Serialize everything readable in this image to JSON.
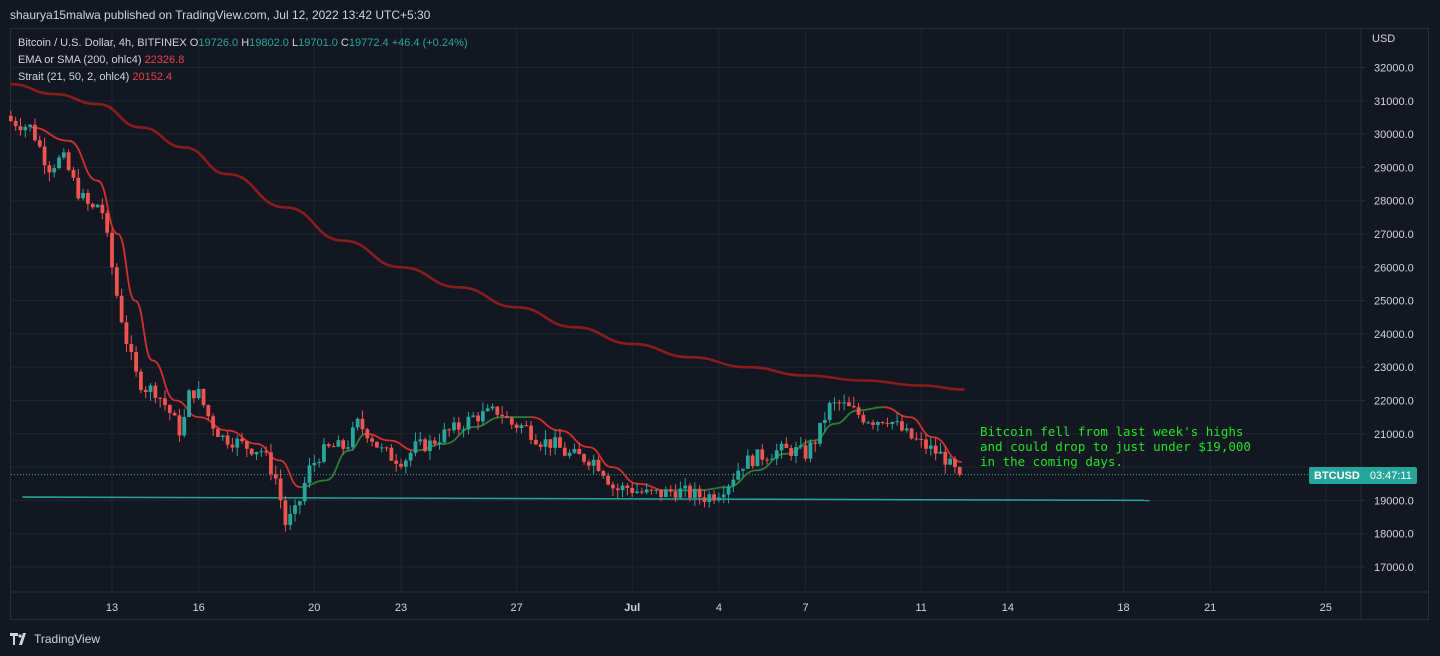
{
  "header": {
    "published": "shaurya15malwa published on TradingView.com, Jul 12, 2022 13:42 UTC+5:30"
  },
  "legend": {
    "symbol": "Bitcoin / U.S. Dollar, 4h, BITFINEX",
    "o_label": "O",
    "o": "19726.0",
    "h_label": "H",
    "h": "19802.0",
    "l_label": "L",
    "l": "19701.0",
    "c_label": "C",
    "c": "19772.4",
    "change": "+46.4 (+0.24%)",
    "ema_label": "EMA or SMA (200, ohlc4)",
    "ema_value": "22326.8",
    "strait_label": "Strait (21, 50, 2, ohlc4)",
    "strait_value": "20152.4"
  },
  "annotation": {
    "line1": "Bitcoin fell from last week's highs",
    "line2": "and could drop to just under $19,000",
    "line3": "in the coming days."
  },
  "price_badge": {
    "symbol": "BTCUSD",
    "countdown": "03:47:11"
  },
  "footer": {
    "brand": "TradingView"
  },
  "colors": {
    "background": "#131722",
    "up": "#26a69a",
    "down": "#ef5350",
    "ma200": "#8b1c1c",
    "strait_down": "#d32f2f",
    "strait_up": "#2e7d32",
    "support": "#26a69a",
    "annotation": "#22e322"
  },
  "chart_data": {
    "type": "candlestick",
    "currency": "USD",
    "ylim": [
      16000,
      33000
    ],
    "yticks": [
      17000,
      18000,
      19000,
      20000,
      21000,
      22000,
      23000,
      24000,
      25000,
      26000,
      27000,
      28000,
      29000,
      30000,
      31000,
      32000
    ],
    "ytick_labels": [
      "17000.0",
      "18000.0",
      "19000.0",
      "",
      "21000.0",
      "22000.0",
      "23000.0",
      "24000.0",
      "25000.0",
      "26000.0",
      "27000.0",
      "28000.0",
      "29000.0",
      "30000.0",
      "31000.0",
      "32000.0"
    ],
    "x_day_ticks": [
      {
        "day": 13,
        "label": "13"
      },
      {
        "day": 16,
        "label": "16"
      },
      {
        "day": 20,
        "label": "20"
      },
      {
        "day": 23,
        "label": "23"
      },
      {
        "day": 27,
        "label": "27"
      },
      {
        "day": 31,
        "label": "Jul"
      },
      {
        "day": 34,
        "label": "4"
      },
      {
        "day": 37,
        "label": "7"
      },
      {
        "day": 41,
        "label": "11"
      },
      {
        "day": 44,
        "label": "14"
      },
      {
        "day": 48,
        "label": "18"
      },
      {
        "day": 51,
        "label": "21"
      },
      {
        "day": 55,
        "label": "25"
      }
    ],
    "x_range_days": [
      9.5,
      56.5
    ],
    "candles_anchor_close": [
      [
        9.5,
        30400
      ],
      [
        10.2,
        30200
      ],
      [
        10.8,
        29000
      ],
      [
        11.3,
        29300
      ],
      [
        11.8,
        28300
      ],
      [
        12.3,
        27700
      ],
      [
        12.6,
        28000
      ],
      [
        12.9,
        26500
      ],
      [
        13.2,
        25000
      ],
      [
        13.5,
        23800
      ],
      [
        13.8,
        22800
      ],
      [
        14.1,
        22400
      ],
      [
        14.5,
        22300
      ],
      [
        14.9,
        21800
      ],
      [
        15.4,
        21000
      ],
      [
        15.7,
        22300
      ],
      [
        16.0,
        22200
      ],
      [
        16.4,
        21400
      ],
      [
        16.8,
        20900
      ],
      [
        17.2,
        20800
      ],
      [
        17.7,
        20600
      ],
      [
        18.2,
        20500
      ],
      [
        18.7,
        19600
      ],
      [
        19.0,
        18300
      ],
      [
        19.4,
        18700
      ],
      [
        19.8,
        19900
      ],
      [
        20.2,
        20400
      ],
      [
        20.6,
        20600
      ],
      [
        21.1,
        20600
      ],
      [
        21.5,
        21300
      ],
      [
        21.9,
        21000
      ],
      [
        22.3,
        20500
      ],
      [
        22.7,
        20300
      ],
      [
        23.1,
        20200
      ],
      [
        23.5,
        20600
      ],
      [
        24.0,
        20700
      ],
      [
        24.5,
        21000
      ],
      [
        25.0,
        21200
      ],
      [
        25.5,
        21500
      ],
      [
        26.0,
        21600
      ],
      [
        26.4,
        21700
      ],
      [
        26.8,
        21300
      ],
      [
        27.3,
        21200
      ],
      [
        27.8,
        20800
      ],
      [
        28.3,
        20700
      ],
      [
        28.7,
        20400
      ],
      [
        29.2,
        20300
      ],
      [
        29.7,
        20200
      ],
      [
        30.0,
        19900
      ],
      [
        30.4,
        19300
      ],
      [
        30.8,
        19400
      ],
      [
        31.1,
        19300
      ],
      [
        31.5,
        19200
      ],
      [
        32.0,
        19200
      ],
      [
        32.5,
        19300
      ],
      [
        33.0,
        19200
      ],
      [
        33.5,
        19100
      ],
      [
        33.9,
        19200
      ],
      [
        34.3,
        19500
      ],
      [
        34.8,
        20100
      ],
      [
        35.3,
        20300
      ],
      [
        35.7,
        20400
      ],
      [
        36.1,
        20500
      ],
      [
        36.6,
        20500
      ],
      [
        37.0,
        20400
      ],
      [
        37.4,
        20900
      ],
      [
        37.8,
        21800
      ],
      [
        38.2,
        21900
      ],
      [
        38.6,
        21700
      ],
      [
        39.0,
        21500
      ],
      [
        39.4,
        21400
      ],
      [
        39.8,
        21500
      ],
      [
        40.2,
        21200
      ],
      [
        40.6,
        20900
      ],
      [
        41.0,
        20700
      ],
      [
        41.4,
        20500
      ],
      [
        41.8,
        20300
      ],
      [
        42.1,
        19900
      ],
      [
        42.4,
        19772
      ]
    ],
    "series": [
      {
        "name": "EMA or SMA (200, ohlc4)",
        "x": [
          9.5,
          11,
          12.5,
          14,
          15.5,
          17,
          19,
          21,
          23,
          25,
          27,
          29,
          31,
          33,
          35,
          37,
          39,
          41,
          42.5
        ],
        "values": [
          31500,
          31200,
          30900,
          30200,
          29600,
          28800,
          27800,
          26800,
          26000,
          25400,
          24800,
          24200,
          23700,
          23300,
          23000,
          22750,
          22600,
          22450,
          22326.8
        ]
      },
      {
        "name": "Strait (21, 50, 2, ohlc4)",
        "x": [
          10.2,
          11.5,
          12.5,
          13.2,
          13.8,
          14.4,
          15.2,
          16.0,
          17.0,
          18.0,
          18.8,
          19.5,
          20.4,
          21.2,
          21.8,
          22.6,
          23.5,
          24.5,
          25.5,
          26.5,
          27.5,
          28.5,
          29.5,
          30.3,
          31.2,
          32.2,
          33.3,
          34.3,
          35.3,
          36.3,
          37.3,
          38.0,
          38.8,
          39.7,
          40.6,
          41.4,
          42.4
        ],
        "values": [
          30200,
          29800,
          28600,
          27000,
          25000,
          23200,
          22000,
          21500,
          21100,
          20700,
          20200,
          19400,
          19600,
          20500,
          21000,
          20800,
          20500,
          20700,
          21200,
          21500,
          21500,
          21100,
          20600,
          20000,
          19500,
          19300,
          19300,
          19400,
          19900,
          20400,
          20800,
          21300,
          21700,
          21800,
          21500,
          20900,
          20152.4
        ]
      }
    ],
    "support_line": {
      "x": [
        9.9,
        48.9
      ],
      "values": [
        19100,
        19000
      ]
    },
    "last_price": 19772.4
  }
}
